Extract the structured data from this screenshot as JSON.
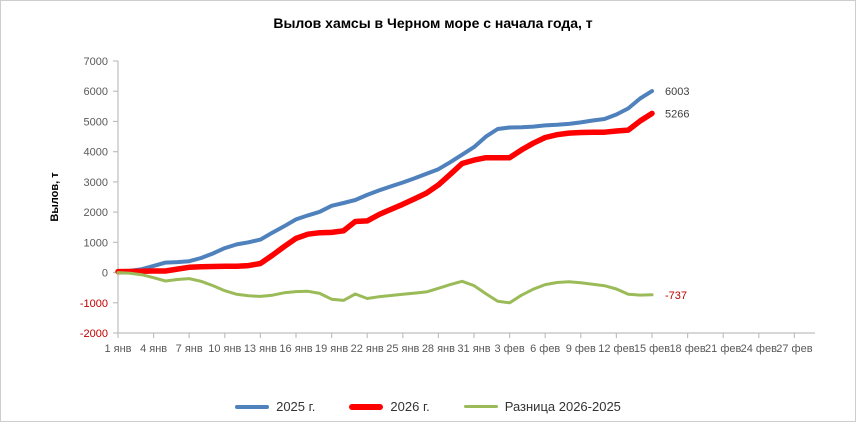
{
  "figure": {
    "background": "#ffffff",
    "border_color": "#cdcdcd"
  },
  "chart_data": {
    "type": "line",
    "title": "Вылов хамсы в Черном море с начала года, т",
    "ylabel": "Вылов, т",
    "xlabel": "",
    "ylim": [
      -2000,
      7000
    ],
    "yticks": [
      7000,
      6000,
      5000,
      4000,
      3000,
      2000,
      1000,
      0,
      -1000,
      -2000
    ],
    "x_tick_labels": [
      "1 янв",
      "4 янв",
      "7 янв",
      "10 янв",
      "13 янв",
      "16 янв",
      "19 янв",
      "22 янв",
      "25 янв",
      "28 янв",
      "31 янв",
      "3 фев",
      "6 фев",
      "9 фев",
      "12 фев",
      "15 фев",
      "18 фев",
      "21 фев",
      "24 фев",
      "27 фев"
    ],
    "x_tick_interval_days": 3,
    "data_days": 46,
    "grid": false,
    "legend_position": "bottom",
    "axis_color": "#bfbfbf",
    "tick_label_color": "#595959",
    "negative_label_color": "#c00000",
    "series": [
      {
        "name": "2025 г.",
        "color": "#4f81bd",
        "stroke_width": 4,
        "end_label": "6003",
        "end_label_color": "#404040",
        "values": [
          30,
          55,
          110,
          220,
          330,
          345,
          375,
          480,
          630,
          810,
          930,
          1000,
          1090,
          1320,
          1530,
          1760,
          1890,
          2010,
          2210,
          2300,
          2400,
          2570,
          2720,
          2850,
          2980,
          3120,
          3270,
          3420,
          3650,
          3900,
          4150,
          4500,
          4750,
          4800,
          4810,
          4830,
          4870,
          4890,
          4920,
          4970,
          5030,
          5080,
          5230,
          5430,
          5760,
          6003
        ]
      },
      {
        "name": "2026 г.",
        "color": "#ff0000",
        "stroke_width": 5.5,
        "end_label": "5266",
        "end_label_color": "#404040",
        "values": [
          30,
          35,
          40,
          50,
          50,
          115,
          175,
          190,
          200,
          210,
          210,
          230,
          300,
          570,
          860,
          1130,
          1270,
          1320,
          1330,
          1380,
          1690,
          1710,
          1920,
          2090,
          2260,
          2440,
          2630,
          2900,
          3250,
          3610,
          3720,
          3800,
          3800,
          3800,
          4060,
          4280,
          4470,
          4560,
          4615,
          4635,
          4645,
          4645,
          4685,
          4715,
          5015,
          5266
        ]
      },
      {
        "name": "Разница 2026-2025",
        "color": "#9bbb59",
        "stroke_width": 3,
        "end_label": "-737",
        "end_label_color": "#c00000",
        "values": [
          0,
          -20,
          -70,
          -170,
          -280,
          -230,
          -200,
          -290,
          -430,
          -600,
          -720,
          -770,
          -790,
          -750,
          -670,
          -630,
          -620,
          -690,
          -880,
          -920,
          -710,
          -860,
          -800,
          -760,
          -720,
          -680,
          -640,
          -520,
          -400,
          -290,
          -430,
          -700,
          -950,
          -1000,
          -750,
          -550,
          -400,
          -330,
          -305,
          -335,
          -385,
          -435,
          -545,
          -715,
          -745,
          -737
        ]
      }
    ]
  }
}
